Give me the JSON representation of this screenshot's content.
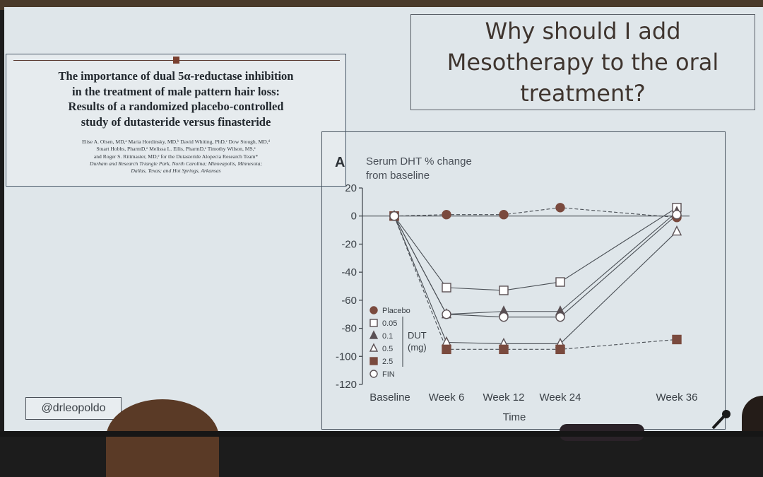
{
  "paper": {
    "title_lines": [
      "The importance of dual 5α-reductase inhibition",
      "in the treatment of male pattern hair loss:",
      "Results of a randomized placebo-controlled",
      "study of dutasteride versus finasteride"
    ],
    "author_lines": [
      "Elise A. Olsen, MD,ᵃ Maria Hordinsky, MD,ᵇ David Whiting, PhD,ᶜ Dow Stough, MD,ᵈ",
      "Stuart Hobbs, PharmD,ᵉ Melissa L. Ellis, PharmD,ᵉ Timothy Wilson, MS,ᵉ",
      "and Roger S. Rittmaster, MD,ᵉ for the Dutasteride Alopecia Research Team*"
    ],
    "affiliation_lines": [
      "Durham and Research Triangle Park, North Carolina; Minneapolis, Minnesota;",
      "Dallas, Texas; and Hot Springs, Arkansas"
    ]
  },
  "question": {
    "lines": [
      "Why should I add",
      "Mesotherapy to the oral",
      "treatment?"
    ]
  },
  "handle": "@drleopoldo",
  "chart_data": {
    "type": "line",
    "panel_label": "A",
    "title_lines": [
      "Serum DHT % change",
      "from baseline"
    ],
    "xlabel": "Time",
    "ylabel": "",
    "categories": [
      "Baseline",
      "Week 6",
      "Week 12",
      "Week 24",
      "Week 36"
    ],
    "x_weeks": [
      0,
      6,
      12,
      24,
      36
    ],
    "ylim": [
      -120,
      20
    ],
    "yticks": [
      20,
      0,
      -20,
      -40,
      -60,
      -80,
      -100,
      -120
    ],
    "legend_group_label": "DUT\n(mg)",
    "series": [
      {
        "name": "Placebo",
        "marker": "filled-circle",
        "values": [
          0,
          1,
          1,
          6,
          -1
        ]
      },
      {
        "name": "0.05",
        "marker": "open-square",
        "values": [
          0,
          -51,
          -53,
          -47,
          6
        ]
      },
      {
        "name": "0.1",
        "marker": "filled-triangle",
        "values": [
          0,
          -70,
          -68,
          -68,
          3
        ]
      },
      {
        "name": "0.5",
        "marker": "open-triangle",
        "values": [
          0,
          -90,
          -91,
          -91,
          -11
        ]
      },
      {
        "name": "2.5",
        "marker": "filled-square",
        "values": [
          0,
          -95,
          -95,
          -95,
          -88
        ]
      },
      {
        "name": "FIN",
        "marker": "open-circle",
        "values": [
          0,
          -70,
          -72,
          -72,
          1
        ]
      }
    ]
  }
}
